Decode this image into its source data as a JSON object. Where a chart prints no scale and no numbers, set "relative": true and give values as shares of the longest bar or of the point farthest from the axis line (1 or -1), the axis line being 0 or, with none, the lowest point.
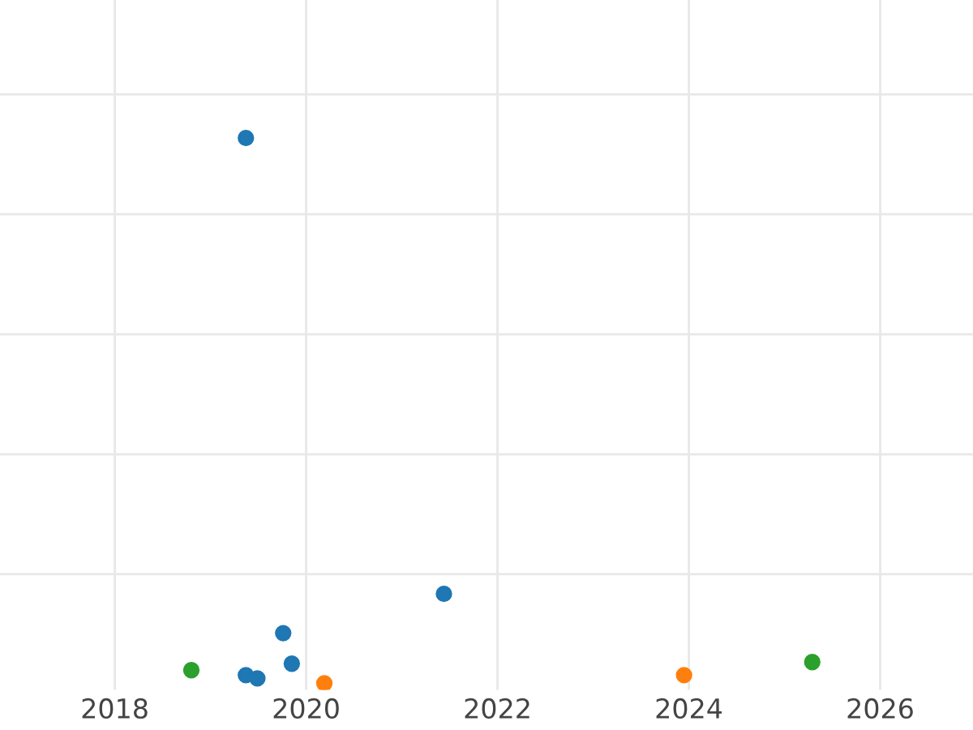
{
  "chart_data": {
    "type": "scatter",
    "relative": true,
    "grid": true,
    "marker": "circle",
    "xlim": [
      2016.8,
      2026.97
    ],
    "xticks": [
      2018,
      2020,
      2022,
      2024,
      2026
    ],
    "series": [
      {
        "color": "#1f77b4",
        "x": [
          2019.37,
          2021.44,
          2019.76,
          2019.85,
          2019.37,
          2019.49
        ],
        "values": [
          1.0,
          0.164,
          0.092,
          0.036,
          0.015,
          0.009
        ]
      },
      {
        "color": "#ff7f0e",
        "x": [
          2020.19,
          2023.95
        ],
        "values": [
          0.0,
          0.015
        ]
      },
      {
        "color": "#2ca02c",
        "x": [
          2018.8,
          2025.29
        ],
        "values": [
          0.024,
          0.039
        ]
      }
    ]
  }
}
